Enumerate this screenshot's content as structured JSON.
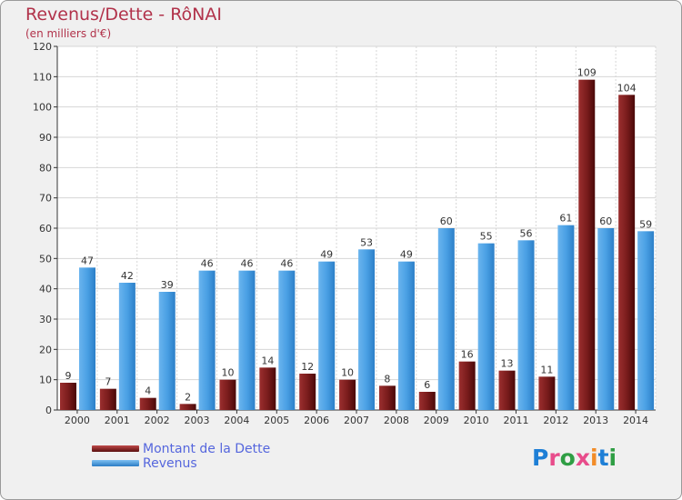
{
  "title": "Revenus/Dette - RôNAI",
  "subtitle": "(en milliers d'€)",
  "colors": {
    "dette": "#7a1c1c",
    "revenus": "#3a93dd",
    "axis": "#333333",
    "grid": "#d6d6d6"
  },
  "logo": {
    "letters": [
      "P",
      "r",
      "o",
      "x",
      "i",
      "t",
      "i"
    ],
    "colors": [
      "#1e7fd6",
      "#e84c8b",
      "#2f9e44",
      "#e84c8b",
      "#f28c28",
      "#1e7fd6",
      "#2f9e44"
    ]
  },
  "chart_data": {
    "type": "bar",
    "categories": [
      "2000",
      "2001",
      "2002",
      "2003",
      "2004",
      "2005",
      "2006",
      "2007",
      "2008",
      "2009",
      "2010",
      "2011",
      "2012",
      "2013",
      "2014"
    ],
    "series": [
      {
        "name": "Montant de la Dette",
        "values": [
          9,
          7,
          4,
          2,
          10,
          14,
          12,
          10,
          8,
          6,
          16,
          13,
          11,
          109,
          104
        ]
      },
      {
        "name": "Revenus",
        "values": [
          47,
          42,
          39,
          46,
          46,
          46,
          49,
          53,
          49,
          60,
          55,
          56,
          61,
          60,
          59
        ]
      }
    ],
    "ylim": [
      0,
      120
    ],
    "yticks": [
      0,
      10,
      20,
      30,
      40,
      50,
      60,
      70,
      80,
      90,
      100,
      110,
      120
    ],
    "grid": true,
    "legend_position": "bottom-left"
  }
}
